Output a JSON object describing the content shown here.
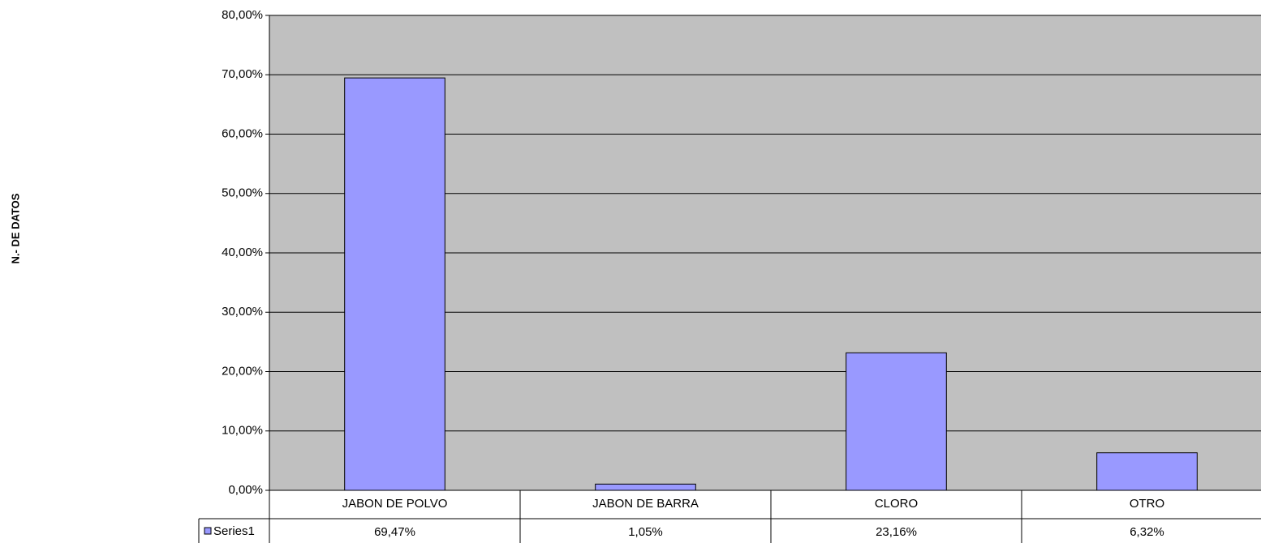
{
  "chart_data": {
    "type": "bar",
    "y_axis_label": "N.- DE DATOS",
    "categories": [
      "JABON DE POLVO",
      "JABON DE BARRA",
      "CLORO",
      "OTRO"
    ],
    "series": [
      {
        "name": "Series1",
        "color": "#9999ff",
        "values": [
          69.47,
          1.05,
          23.16,
          6.32
        ],
        "value_labels": [
          "69,47%",
          "1,05%",
          "23,16%",
          "6,32%"
        ]
      }
    ],
    "ylim": [
      0,
      80
    ],
    "yticks": [
      {
        "value": 0,
        "label": "0,00%"
      },
      {
        "value": 10,
        "label": "10,00%"
      },
      {
        "value": 20,
        "label": "20,00%"
      },
      {
        "value": 30,
        "label": "30,00%"
      },
      {
        "value": 40,
        "label": "40,00%"
      },
      {
        "value": 50,
        "label": "50,00%"
      },
      {
        "value": 60,
        "label": "60,00%"
      },
      {
        "value": 70,
        "label": "70,00%"
      },
      {
        "value": 80,
        "label": "80,00%"
      }
    ],
    "grid": true,
    "plot_background": "#c0c0c0"
  }
}
